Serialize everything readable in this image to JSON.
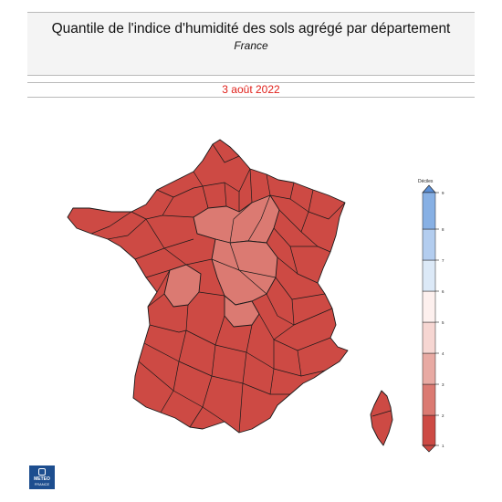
{
  "header": {
    "title": "Quantile de l'indice d'humidité des sols agrégé par département",
    "subtitle": "France",
    "date": "3 août 2022"
  },
  "legend": {
    "title": "Déciles",
    "ticks": [
      "1",
      "2",
      "3",
      "4",
      "5",
      "6",
      "7",
      "8",
      "9"
    ],
    "colors": [
      "#cd4a44",
      "#db7a72",
      "#e8aaa3",
      "#f6d6d2",
      "#fdf0ee",
      "#dce9f7",
      "#b3cdef",
      "#87b0e4",
      "#5b8fd6"
    ]
  },
  "map": {
    "border_color": "#1a1a1a",
    "regions": [
      {
        "name": "paris-basin-north",
        "decile": 3
      },
      {
        "name": "paris-basin-east",
        "decile": 3
      },
      {
        "name": "centre-val-de-loire",
        "decile": 3
      },
      {
        "name": "auvergne",
        "decile": 3
      },
      {
        "name": "limousin",
        "decile": 3
      },
      {
        "name": "poitou",
        "decile": 3
      },
      {
        "name": "rest-of-france",
        "decile": 2
      }
    ]
  },
  "logo": {
    "line1": "METEO",
    "line2": "FRANCE"
  }
}
